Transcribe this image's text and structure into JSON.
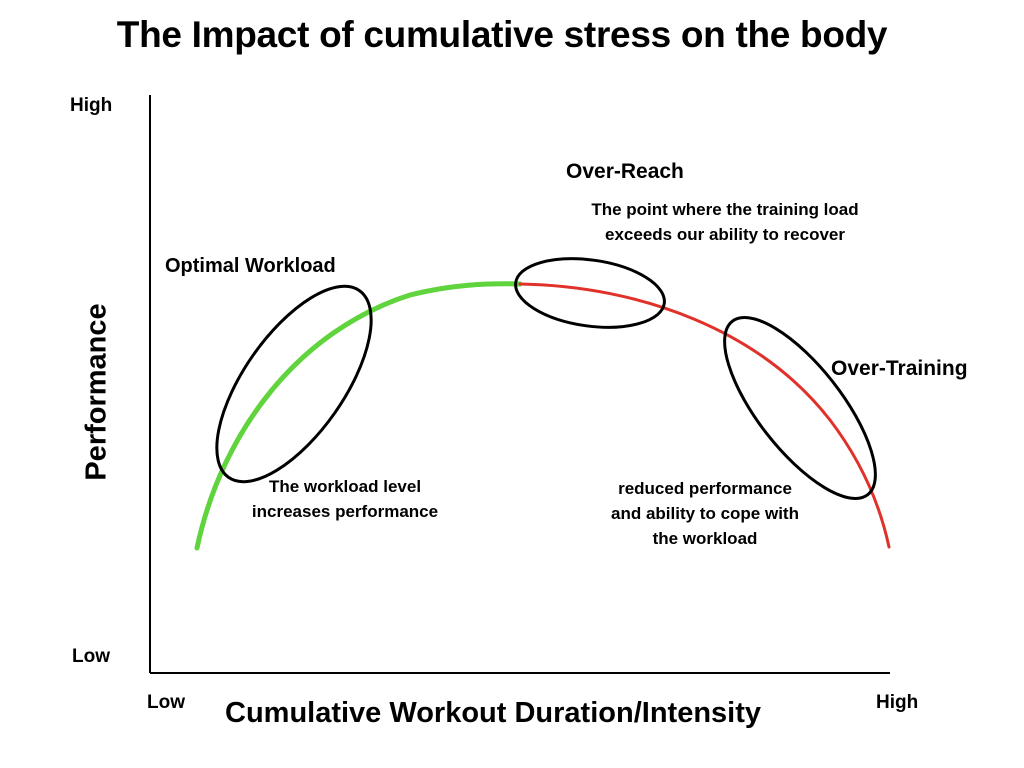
{
  "title": "The Impact of cumulative stress on the body",
  "axes": {
    "y_label": "Performance",
    "x_label": "Cumulative Workout Duration/Intensity",
    "y_high": "High",
    "y_low": "Low",
    "x_low": "Low",
    "x_high": "High"
  },
  "zones": [
    {
      "name": "Optimal Workload",
      "description_lines": [
        "The workload level",
        "increases performance"
      ],
      "color": "#5fd43c"
    },
    {
      "name": "Over-Reach",
      "description_lines": [
        "The point where the training load",
        "exceeds our ability to recover"
      ],
      "color": "#e0322a"
    },
    {
      "name": "Over-Training",
      "description_lines": [
        "reduced performance",
        "and ability to cope with",
        "the workload"
      ],
      "color": "#e0322a"
    }
  ]
}
